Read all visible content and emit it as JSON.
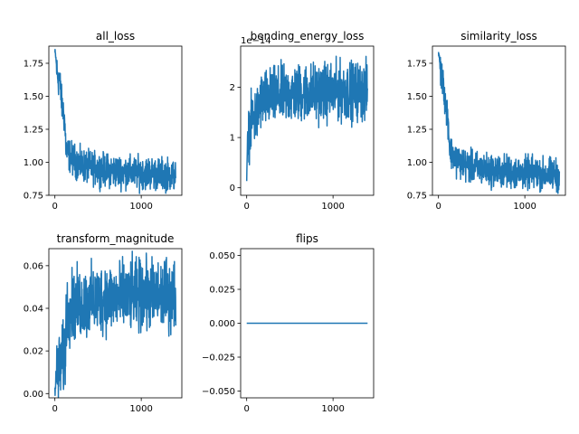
{
  "chart_data": [
    {
      "type": "line",
      "title": "all_loss",
      "xlim": [
        -70,
        1470
      ],
      "ylim": [
        0.75,
        1.88
      ],
      "xticks": [
        0,
        1000
      ],
      "xtick_labels": [
        "0",
        "1000"
      ],
      "yticks": [
        0.75,
        1.0,
        1.25,
        1.5,
        1.75
      ],
      "ytick_labels": [
        "0.75",
        "1.00",
        "1.25",
        "1.50",
        "1.75"
      ],
      "offset_label": "",
      "series_color": "#1f77b4",
      "series": [
        {
          "x": [
            0,
            10,
            25,
            40,
            55,
            70,
            85,
            100,
            115,
            125,
            135,
            150,
            170,
            200,
            250,
            300,
            400,
            500,
            600,
            700,
            800,
            900,
            1000,
            1100,
            1200,
            1300,
            1400
          ],
          "y": [
            1.83,
            1.8,
            1.68,
            1.62,
            1.65,
            1.5,
            1.42,
            1.38,
            1.3,
            1.15,
            1.08,
            1.07,
            1.05,
            1.03,
            1.0,
            0.98,
            0.96,
            0.95,
            0.94,
            0.93,
            0.93,
            0.92,
            0.92,
            0.92,
            0.91,
            0.91,
            0.9
          ],
          "noise": 0.06
        }
      ]
    },
    {
      "type": "line",
      "title": "bending_energy_loss",
      "xlim": [
        -70,
        1470
      ],
      "ylim": [
        -0.15,
        2.82
      ],
      "xticks": [
        0,
        1000
      ],
      "xtick_labels": [
        "0",
        "1000"
      ],
      "yticks": [
        0,
        1,
        2
      ],
      "ytick_labels": [
        "0",
        "1",
        "2"
      ],
      "offset_label": "1e−14",
      "series_color": "#1f77b4",
      "series": [
        {
          "x": [
            0,
            5,
            10,
            20,
            40,
            60,
            80,
            100,
            120,
            140,
            150,
            200,
            300,
            400,
            500,
            600,
            700,
            800,
            900,
            1000,
            1100,
            1200,
            1300,
            1400
          ],
          "y": [
            0.0,
            0.6,
            0.9,
            1.1,
            1.2,
            1.3,
            1.4,
            1.4,
            1.45,
            1.5,
            1.7,
            1.75,
            1.8,
            1.85,
            1.85,
            1.88,
            1.9,
            1.9,
            1.9,
            1.9,
            1.92,
            1.92,
            1.92,
            1.92
          ],
          "noise": 0.28
        }
      ]
    },
    {
      "type": "line",
      "title": "similarity_loss",
      "xlim": [
        -70,
        1470
      ],
      "ylim": [
        0.75,
        1.88
      ],
      "xticks": [
        0,
        1000
      ],
      "xtick_labels": [
        "0",
        "1000"
      ],
      "yticks": [
        0.75,
        1.0,
        1.25,
        1.5,
        1.75
      ],
      "ytick_labels": [
        "0.75",
        "1.00",
        "1.25",
        "1.50",
        "1.75"
      ],
      "offset_label": "",
      "series_color": "#1f77b4",
      "series": [
        {
          "x": [
            0,
            10,
            25,
            40,
            55,
            70,
            85,
            100,
            115,
            125,
            135,
            150,
            170,
            200,
            250,
            300,
            400,
            500,
            600,
            700,
            800,
            900,
            1000,
            1100,
            1200,
            1300,
            1400
          ],
          "y": [
            1.83,
            1.8,
            1.68,
            1.62,
            1.65,
            1.5,
            1.42,
            1.38,
            1.3,
            1.15,
            1.08,
            1.07,
            1.05,
            1.03,
            1.0,
            0.98,
            0.96,
            0.95,
            0.94,
            0.93,
            0.93,
            0.92,
            0.92,
            0.92,
            0.91,
            0.91,
            0.9
          ],
          "noise": 0.06
        }
      ]
    },
    {
      "type": "line",
      "title": "transform_magnitude",
      "xlim": [
        -70,
        1470
      ],
      "ylim": [
        -0.002,
        0.068
      ],
      "xticks": [
        0,
        1000
      ],
      "xtick_labels": [
        "0",
        "1000"
      ],
      "yticks": [
        0.0,
        0.02,
        0.04,
        0.06
      ],
      "ytick_labels": [
        "0.00",
        "0.02",
        "0.04",
        "0.06"
      ],
      "offset_label": "",
      "series_color": "#1f77b4",
      "series": [
        {
          "x": [
            0,
            10,
            20,
            40,
            60,
            80,
            100,
            120,
            130,
            140,
            150,
            200,
            300,
            400,
            500,
            600,
            700,
            800,
            900,
            1000,
            1100,
            1200,
            1300,
            1400
          ],
          "y": [
            0.0,
            0.005,
            0.01,
            0.012,
            0.012,
            0.015,
            0.016,
            0.017,
            0.035,
            0.038,
            0.04,
            0.041,
            0.042,
            0.043,
            0.044,
            0.045,
            0.045,
            0.045,
            0.046,
            0.046,
            0.046,
            0.046,
            0.046,
            0.046
          ],
          "noise": 0.008
        }
      ]
    },
    {
      "type": "line",
      "title": "flips",
      "xlim": [
        -70,
        1470
      ],
      "ylim": [
        -0.055,
        0.055
      ],
      "xticks": [
        0,
        1000
      ],
      "xtick_labels": [
        "0",
        "1000"
      ],
      "yticks": [
        -0.05,
        -0.025,
        0.0,
        0.025,
        0.05
      ],
      "ytick_labels": [
        "−0.050",
        "−0.025",
        "0.000",
        "0.025",
        "0.050"
      ],
      "offset_label": "",
      "series_color": "#1f77b4",
      "series": [
        {
          "x": [
            0,
            1400
          ],
          "y": [
            0.0,
            0.0
          ],
          "noise": 0
        }
      ]
    }
  ]
}
